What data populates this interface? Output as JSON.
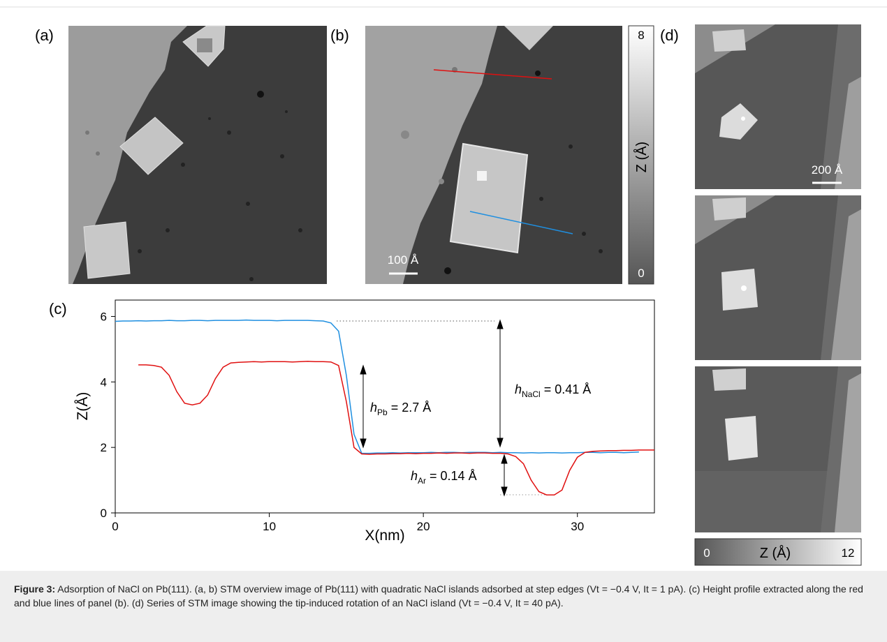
{
  "panel_labels": [
    "(a)",
    "(b)",
    "(c)",
    "(d)"
  ],
  "colorbar_b": {
    "max": 8,
    "min": 0,
    "label": "Z (Å)"
  },
  "colorbar_d": {
    "min": 0,
    "label": "Z (Å)",
    "max": 12
  },
  "scale_bars": [
    "100 Å",
    "200 Å"
  ],
  "chart_data": {
    "type": "line",
    "x_label": "X(nm)",
    "y_label": "Z(Å)",
    "xlim": [
      0,
      35
    ],
    "ylim": [
      0,
      6.5
    ],
    "xticks": [
      0,
      10,
      20,
      30
    ],
    "yticks": [
      0,
      2,
      4,
      6
    ],
    "x": [
      0,
      0.5,
      1,
      1.5,
      2,
      2.5,
      3,
      3.5,
      4,
      4.5,
      5,
      5.5,
      6,
      6.5,
      7,
      7.5,
      8,
      8.5,
      9,
      9.5,
      10,
      10.5,
      11,
      11.5,
      12,
      12.5,
      13,
      13.5,
      14,
      14.5,
      15,
      15.5,
      16,
      16.5,
      17,
      17.5,
      18,
      18.5,
      19,
      19.5,
      20,
      20.5,
      21,
      21.5,
      22,
      22.5,
      23,
      23.5,
      24,
      24.5,
      25,
      25.5,
      26,
      26.5,
      27,
      27.5,
      28,
      28.5,
      29,
      29.5,
      30,
      30.5,
      31,
      31.5,
      32,
      32.5,
      33,
      33.5,
      34,
      34.5,
      35
    ],
    "series": [
      {
        "color": "#1f8fe0",
        "values": [
          5.85,
          5.86,
          5.86,
          5.87,
          5.86,
          5.87,
          5.87,
          5.88,
          5.87,
          5.87,
          5.88,
          5.88,
          5.87,
          5.88,
          5.88,
          5.88,
          5.88,
          5.89,
          5.88,
          5.88,
          5.88,
          5.87,
          5.88,
          5.88,
          5.88,
          5.88,
          5.87,
          5.86,
          5.8,
          5.55,
          4.2,
          2.4,
          1.82,
          1.82,
          1.83,
          1.83,
          1.84,
          1.83,
          1.84,
          1.84,
          1.84,
          1.85,
          1.84,
          1.85,
          1.85,
          1.84,
          1.85,
          1.85,
          1.85,
          1.84,
          1.85,
          1.84,
          1.84,
          1.83,
          1.84,
          1.83,
          1.84,
          1.84,
          1.83,
          1.84,
          1.84,
          1.85,
          1.85,
          1.84,
          1.85,
          1.85,
          1.84,
          1.85,
          1.86,
          null,
          null
        ]
      },
      {
        "color": "#e01010",
        "values": [
          null,
          null,
          null,
          4.52,
          4.52,
          4.5,
          4.45,
          4.2,
          3.7,
          3.35,
          3.3,
          3.35,
          3.6,
          4.1,
          4.45,
          4.58,
          4.6,
          4.61,
          4.62,
          4.61,
          4.62,
          4.62,
          4.62,
          4.61,
          4.62,
          4.63,
          4.62,
          4.62,
          4.61,
          4.5,
          3.4,
          2.0,
          1.8,
          1.79,
          1.8,
          1.8,
          1.81,
          1.81,
          1.82,
          1.81,
          1.82,
          1.82,
          1.83,
          1.82,
          1.83,
          1.83,
          1.82,
          1.83,
          1.83,
          1.82,
          1.82,
          1.8,
          1.72,
          1.5,
          1.0,
          0.65,
          0.55,
          0.55,
          0.7,
          1.3,
          1.7,
          1.85,
          1.88,
          1.89,
          1.9,
          1.9,
          1.91,
          1.91,
          1.92,
          1.92,
          1.92
        ]
      }
    ],
    "annotations": [
      {
        "symbol": "h",
        "subscript": "NaCl",
        "text": "= 0.41 Å"
      },
      {
        "symbol": "h",
        "subscript": "Pb",
        "text": "=  2.7 Å"
      },
      {
        "symbol": "h",
        "subscript": "Ar",
        "text": "= 0.14 Å"
      }
    ]
  },
  "caption": {
    "label": "Figure 3:",
    "text": "Adsorption of NaCl on Pb(111). (a, b) STM overview image of Pb(111) with quadratic NaCl islands adsorbed at step edges (Vt = −0.4 V, It = 1 pA). (c) Height profile extracted along the red and blue lines of panel (b). (d) Series of STM image showing the tip-induced rotation of an NaCl island (Vt = −0.4 V, It = 40 pA)."
  }
}
